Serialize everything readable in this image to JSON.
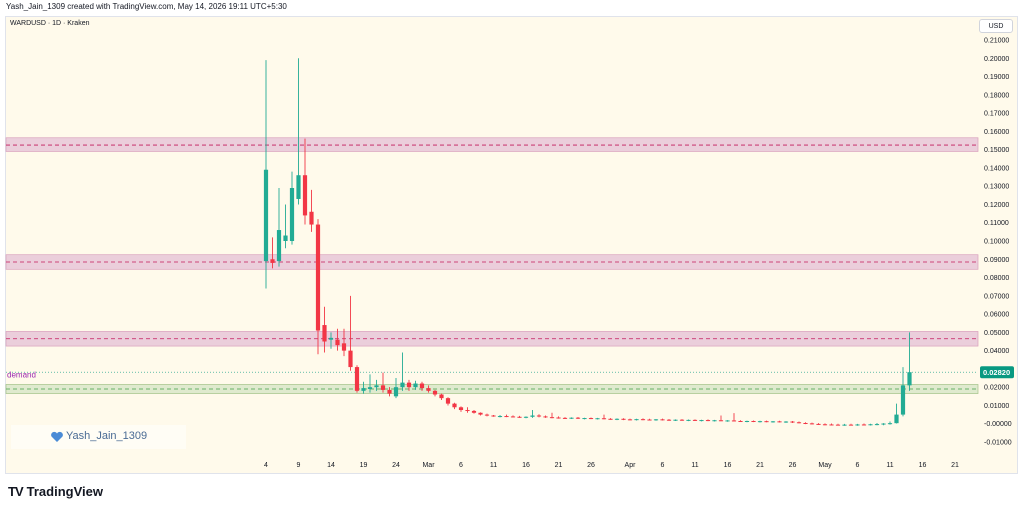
{
  "header": {
    "credit": "Yash_Jain_1309 created with TradingView.com, May 14, 2026 19:11 UTC+5:30",
    "symbol": "WARDUSD · 1D · Kraken",
    "currency": "USD"
  },
  "watermark": {
    "text": "Yash_Jain_1309"
  },
  "logo": {
    "text": "TradingView",
    "mark": "TV"
  },
  "colors": {
    "up": "#22ab94",
    "down": "#f23645",
    "resistance_band": "#e8c6d8",
    "resistance_line": "#c2185b",
    "demand_band": "#d9e6c9",
    "demand_line": "#43a047",
    "background": "#fffaeb",
    "price_tag": "#089981"
  },
  "chart_data": {
    "type": "candlestick",
    "ylim": [
      -0.015,
      0.215
    ],
    "y_ticks": [
      "0.21000",
      "0.20000",
      "0.19000",
      "0.18000",
      "0.17000",
      "0.16000",
      "0.15000",
      "0.14000",
      "0.13000",
      "0.12000",
      "0.11000",
      "0.10000",
      "0.09000",
      "0.08000",
      "0.07000",
      "0.06000",
      "0.05000",
      "0.04000",
      "0.03000",
      "0.02000",
      "0.01000",
      "-0.00000",
      "-0.01000"
    ],
    "y_tick_values": [
      0.21,
      0.2,
      0.19,
      0.18,
      0.17,
      0.16,
      0.15,
      0.14,
      0.13,
      0.12,
      0.11,
      0.1,
      0.09,
      0.08,
      0.07,
      0.06,
      0.05,
      0.04,
      0.03,
      0.02,
      0.01,
      0.0,
      -0.01
    ],
    "x_ticks": [
      {
        "label": "4",
        "day": 0
      },
      {
        "label": "9",
        "day": 5
      },
      {
        "label": "14",
        "day": 10
      },
      {
        "label": "19",
        "day": 15
      },
      {
        "label": "24",
        "day": 20
      },
      {
        "label": "Mar",
        "day": 25
      },
      {
        "label": "6",
        "day": 30
      },
      {
        "label": "11",
        "day": 35
      },
      {
        "label": "16",
        "day": 40
      },
      {
        "label": "21",
        "day": 45
      },
      {
        "label": "26",
        "day": 50
      },
      {
        "label": "Apr",
        "day": 56
      },
      {
        "label": "6",
        "day": 61
      },
      {
        "label": "11",
        "day": 66
      },
      {
        "label": "16",
        "day": 71
      },
      {
        "label": "21",
        "day": 76
      },
      {
        "label": "26",
        "day": 81
      },
      {
        "label": "May",
        "day": 86
      },
      {
        "label": "6",
        "day": 91
      },
      {
        "label": "11",
        "day": 96
      },
      {
        "label": "16",
        "day": 101
      },
      {
        "label": "21",
        "day": 106
      }
    ],
    "bands": [
      {
        "low": 0.149,
        "high": 0.1565,
        "line": 0.1525,
        "kind": "resistance"
      },
      {
        "low": 0.0845,
        "high": 0.0925,
        "line": 0.0885,
        "kind": "resistance"
      },
      {
        "low": 0.0425,
        "high": 0.0505,
        "line": 0.0465,
        "kind": "resistance"
      },
      {
        "low": 0.0165,
        "high": 0.0215,
        "line": 0.019,
        "kind": "demand",
        "label": "demand"
      }
    ],
    "last_price": 0.0282,
    "last_price_label": "0.02820",
    "candles": [
      {
        "o": 0.089,
        "h": 0.199,
        "l": 0.074,
        "c": 0.139
      },
      {
        "o": 0.09,
        "h": 0.102,
        "l": 0.085,
        "c": 0.088
      },
      {
        "o": 0.089,
        "h": 0.129,
        "l": 0.086,
        "c": 0.106
      },
      {
        "o": 0.1,
        "h": 0.12,
        "l": 0.096,
        "c": 0.103
      },
      {
        "o": 0.1,
        "h": 0.138,
        "l": 0.098,
        "c": 0.129
      },
      {
        "o": 0.123,
        "h": 0.2,
        "l": 0.12,
        "c": 0.136
      },
      {
        "o": 0.136,
        "h": 0.156,
        "l": 0.109,
        "c": 0.114
      },
      {
        "o": 0.116,
        "h": 0.128,
        "l": 0.105,
        "c": 0.109
      },
      {
        "o": 0.109,
        "h": 0.112,
        "l": 0.038,
        "c": 0.051
      },
      {
        "o": 0.054,
        "h": 0.064,
        "l": 0.039,
        "c": 0.045
      },
      {
        "o": 0.046,
        "h": 0.05,
        "l": 0.041,
        "c": 0.047
      },
      {
        "o": 0.046,
        "h": 0.052,
        "l": 0.04,
        "c": 0.043
      },
      {
        "o": 0.044,
        "h": 0.052,
        "l": 0.037,
        "c": 0.04
      },
      {
        "o": 0.04,
        "h": 0.07,
        "l": 0.029,
        "c": 0.031
      },
      {
        "o": 0.031,
        "h": 0.032,
        "l": 0.017,
        "c": 0.018
      },
      {
        "o": 0.018,
        "h": 0.023,
        "l": 0.0165,
        "c": 0.0195
      },
      {
        "o": 0.019,
        "h": 0.027,
        "l": 0.017,
        "c": 0.02
      },
      {
        "o": 0.02,
        "h": 0.024,
        "l": 0.018,
        "c": 0.021
      },
      {
        "o": 0.021,
        "h": 0.028,
        "l": 0.017,
        "c": 0.0185
      },
      {
        "o": 0.0185,
        "h": 0.02,
        "l": 0.015,
        "c": 0.0165
      },
      {
        "o": 0.015,
        "h": 0.025,
        "l": 0.014,
        "c": 0.02
      },
      {
        "o": 0.02,
        "h": 0.039,
        "l": 0.018,
        "c": 0.0225
      },
      {
        "o": 0.0225,
        "h": 0.024,
        "l": 0.018,
        "c": 0.02
      },
      {
        "o": 0.02,
        "h": 0.0235,
        "l": 0.0185,
        "c": 0.022
      },
      {
        "o": 0.022,
        "h": 0.023,
        "l": 0.018,
        "c": 0.0195
      },
      {
        "o": 0.0195,
        "h": 0.021,
        "l": 0.017,
        "c": 0.018
      },
      {
        "o": 0.018,
        "h": 0.0185,
        "l": 0.015,
        "c": 0.016
      },
      {
        "o": 0.016,
        "h": 0.0165,
        "l": 0.013,
        "c": 0.014
      },
      {
        "o": 0.014,
        "h": 0.0145,
        "l": 0.01,
        "c": 0.011
      },
      {
        "o": 0.011,
        "h": 0.0115,
        "l": 0.008,
        "c": 0.009
      },
      {
        "o": 0.009,
        "h": 0.0095,
        "l": 0.0065,
        "c": 0.0075
      },
      {
        "o": 0.0075,
        "h": 0.009,
        "l": 0.006,
        "c": 0.007
      },
      {
        "o": 0.007,
        "h": 0.0075,
        "l": 0.0055,
        "c": 0.006
      },
      {
        "o": 0.006,
        "h": 0.0062,
        "l": 0.0045,
        "c": 0.005
      },
      {
        "o": 0.005,
        "h": 0.0055,
        "l": 0.004,
        "c": 0.0045
      },
      {
        "o": 0.0045,
        "h": 0.0048,
        "l": 0.0038,
        "c": 0.004
      },
      {
        "o": 0.004,
        "h": 0.0048,
        "l": 0.0035,
        "c": 0.0042
      },
      {
        "o": 0.0042,
        "h": 0.005,
        "l": 0.0036,
        "c": 0.004
      },
      {
        "o": 0.004,
        "h": 0.0046,
        "l": 0.0034,
        "c": 0.0038
      },
      {
        "o": 0.0038,
        "h": 0.0043,
        "l": 0.0032,
        "c": 0.0035
      },
      {
        "o": 0.0035,
        "h": 0.004,
        "l": 0.003,
        "c": 0.0038
      },
      {
        "o": 0.0038,
        "h": 0.0075,
        "l": 0.0032,
        "c": 0.0045
      },
      {
        "o": 0.0045,
        "h": 0.0052,
        "l": 0.0035,
        "c": 0.004
      },
      {
        "o": 0.004,
        "h": 0.0045,
        "l": 0.0032,
        "c": 0.0036
      },
      {
        "o": 0.0036,
        "h": 0.006,
        "l": 0.003,
        "c": 0.0034
      },
      {
        "o": 0.0034,
        "h": 0.004,
        "l": 0.0028,
        "c": 0.0032
      },
      {
        "o": 0.0032,
        "h": 0.0036,
        "l": 0.0026,
        "c": 0.003
      },
      {
        "o": 0.003,
        "h": 0.0035,
        "l": 0.0026,
        "c": 0.0033
      },
      {
        "o": 0.0033,
        "h": 0.0037,
        "l": 0.0026,
        "c": 0.0029
      },
      {
        "o": 0.0029,
        "h": 0.0033,
        "l": 0.0024,
        "c": 0.0031
      },
      {
        "o": 0.0031,
        "h": 0.0034,
        "l": 0.0025,
        "c": 0.0028
      },
      {
        "o": 0.0028,
        "h": 0.0032,
        "l": 0.0023,
        "c": 0.003
      },
      {
        "o": 0.003,
        "h": 0.005,
        "l": 0.0024,
        "c": 0.0027
      },
      {
        "o": 0.0027,
        "h": 0.0031,
        "l": 0.0022,
        "c": 0.0025
      },
      {
        "o": 0.0025,
        "h": 0.0029,
        "l": 0.002,
        "c": 0.0027
      },
      {
        "o": 0.0027,
        "h": 0.003,
        "l": 0.002,
        "c": 0.0024
      },
      {
        "o": 0.0024,
        "h": 0.0028,
        "l": 0.0019,
        "c": 0.0022
      },
      {
        "o": 0.0022,
        "h": 0.0027,
        "l": 0.0018,
        "c": 0.0025
      },
      {
        "o": 0.0025,
        "h": 0.0029,
        "l": 0.0019,
        "c": 0.0023
      },
      {
        "o": 0.0023,
        "h": 0.0027,
        "l": 0.0018,
        "c": 0.0021
      },
      {
        "o": 0.0021,
        "h": 0.0026,
        "l": 0.0016,
        "c": 0.0024
      },
      {
        "o": 0.0024,
        "h": 0.0028,
        "l": 0.0018,
        "c": 0.0022
      },
      {
        "o": 0.0022,
        "h": 0.0026,
        "l": 0.0016,
        "c": 0.002
      },
      {
        "o": 0.002,
        "h": 0.0024,
        "l": 0.0015,
        "c": 0.0022
      },
      {
        "o": 0.0022,
        "h": 0.0025,
        "l": 0.0016,
        "c": 0.0019
      },
      {
        "o": 0.0019,
        "h": 0.0023,
        "l": 0.0014,
        "c": 0.0021
      },
      {
        "o": 0.0021,
        "h": 0.0024,
        "l": 0.0015,
        "c": 0.0018
      },
      {
        "o": 0.0018,
        "h": 0.0022,
        "l": 0.0013,
        "c": 0.002
      },
      {
        "o": 0.002,
        "h": 0.0024,
        "l": 0.0014,
        "c": 0.0017
      },
      {
        "o": 0.0017,
        "h": 0.0021,
        "l": 0.0012,
        "c": 0.0019
      },
      {
        "o": 0.0019,
        "h": 0.0045,
        "l": 0.0014,
        "c": 0.0016
      },
      {
        "o": 0.0016,
        "h": 0.002,
        "l": 0.0011,
        "c": 0.0018
      },
      {
        "o": 0.0018,
        "h": 0.0058,
        "l": 0.0012,
        "c": 0.0015
      },
      {
        "o": 0.0015,
        "h": 0.0019,
        "l": 0.001,
        "c": 0.0013
      },
      {
        "o": 0.0013,
        "h": 0.0017,
        "l": 0.0008,
        "c": 0.0015
      },
      {
        "o": 0.0015,
        "h": 0.0018,
        "l": 0.0009,
        "c": 0.0012
      },
      {
        "o": 0.0012,
        "h": 0.0016,
        "l": 0.0007,
        "c": 0.0014
      },
      {
        "o": 0.0014,
        "h": 0.0017,
        "l": 0.0008,
        "c": 0.0011
      },
      {
        "o": 0.0011,
        "h": 0.0015,
        "l": 0.0006,
        "c": 0.0013
      },
      {
        "o": 0.0013,
        "h": 0.0016,
        "l": 0.0007,
        "c": 0.001
      },
      {
        "o": 0.001,
        "h": 0.0014,
        "l": 0.0005,
        "c": 0.0012
      },
      {
        "o": 0.0012,
        "h": 0.0015,
        "l": 0.0004,
        "c": 0.0008
      },
      {
        "o": 0.0008,
        "h": 0.0012,
        "l": 0.0002,
        "c": 0.0004
      },
      {
        "o": 0.0004,
        "h": 0.0008,
        "l": -0.0002,
        "c": 0.0002
      },
      {
        "o": 0.0002,
        "h": 0.0006,
        "l": -0.0004,
        "c": -0.0001
      },
      {
        "o": -0.0001,
        "h": 0.0003,
        "l": -0.0006,
        "c": -0.0003
      },
      {
        "o": -0.0003,
        "h": 0.0002,
        "l": -0.0008,
        "c": -0.0004
      },
      {
        "o": -0.0004,
        "h": 0.0001,
        "l": -0.0009,
        "c": -0.0005
      },
      {
        "o": -0.0005,
        "h": 0.0,
        "l": -0.001,
        "c": -0.0006
      },
      {
        "o": -0.0006,
        "h": -0.0001,
        "l": -0.0011,
        "c": -0.0005
      },
      {
        "o": -0.0005,
        "h": 0.0,
        "l": -0.001,
        "c": -0.0006
      },
      {
        "o": -0.0006,
        "h": -0.0001,
        "l": -0.0011,
        "c": -0.0004
      },
      {
        "o": -0.0004,
        "h": 0.0001,
        "l": -0.0009,
        "c": -0.0005
      },
      {
        "o": -0.0005,
        "h": 0.0,
        "l": -0.001,
        "c": -0.0003
      },
      {
        "o": -0.0003,
        "h": 0.0004,
        "l": -0.0008,
        "c": -0.0002
      },
      {
        "o": -0.0002,
        "h": 0.0003,
        "l": -0.0008,
        "c": 0.0001
      },
      {
        "o": 0.0001,
        "h": 0.0012,
        "l": -0.0005,
        "c": 0.0003
      },
      {
        "o": 0.0003,
        "h": 0.011,
        "l": 0.0001,
        "c": 0.005
      },
      {
        "o": 0.005,
        "h": 0.031,
        "l": 0.004,
        "c": 0.021
      },
      {
        "o": 0.021,
        "h": 0.05,
        "l": 0.018,
        "c": 0.0282
      }
    ]
  }
}
